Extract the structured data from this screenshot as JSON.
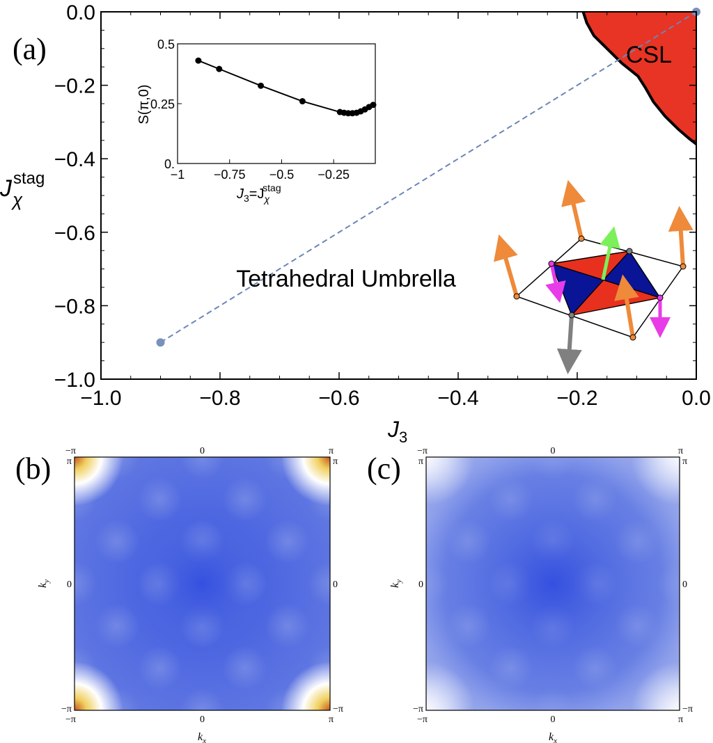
{
  "chart_data": [
    {
      "type": "scatter",
      "panel_label": "(a)",
      "title": "",
      "xlabel_main": "J",
      "xlabel_sub": "3",
      "ylabel_main": "J",
      "ylabel_sub": "χ",
      "ylabel_sup": "stag",
      "xlim": [
        -1.0,
        0.0
      ],
      "ylim": [
        -1.0,
        0.0
      ],
      "xticks": [
        -1.0,
        -0.8,
        -0.6,
        -0.4,
        -0.2,
        0.0
      ],
      "xtick_labels": [
        "−1.0",
        "−0.8",
        "−0.6",
        "−0.4",
        "−0.2",
        "0.0"
      ],
      "yticks": [
        0.0,
        -0.2,
        -0.4,
        -0.6,
        -0.8,
        -1.0
      ],
      "ytick_labels": [
        "0.0",
        "−0.2",
        "−0.4",
        "−0.6",
        "−0.8",
        "−1.0"
      ],
      "regions": [
        {
          "name": "CSL",
          "label": "CSL",
          "color": "#e83424",
          "boundary": [
            [
              -0.19,
              0.0
            ],
            [
              -0.184,
              -0.03
            ],
            [
              -0.172,
              -0.065
            ],
            [
              -0.15,
              -0.1
            ],
            [
              -0.125,
              -0.14
            ],
            [
              -0.098,
              -0.175
            ],
            [
              -0.085,
              -0.208
            ],
            [
              -0.072,
              -0.245
            ],
            [
              -0.052,
              -0.285
            ],
            [
              -0.03,
              -0.32
            ],
            [
              -0.012,
              -0.345
            ],
            [
              0.0,
              -0.36
            ]
          ]
        },
        {
          "name": "tetrahedral-umbrella",
          "label": "Tetrahedral Umbrella",
          "color": "#ffffff"
        }
      ],
      "series": [
        {
          "name": "dashed-line",
          "style": "dashed",
          "color": "#6a86b8",
          "points": [
            [
              -0.9,
              -0.9
            ],
            [
              0.0,
              0.0
            ]
          ]
        },
        {
          "name": "endpoints",
          "style": "markers",
          "color": "#7a90bd",
          "points": [
            [
              -0.9,
              -0.9
            ],
            [
              0.0,
              0.0
            ]
          ]
        }
      ]
    },
    {
      "type": "line",
      "name": "inset",
      "title": "",
      "xlabel": "J₃=J_χ^stag",
      "xlabel_pre": "J",
      "xlabel_sub1": "3",
      "xlabel_eq": "=J",
      "xlabel_sub2": "χ",
      "xlabel_sup2": "stag",
      "ylabel": "S(π,0)",
      "xlim": [
        -1.0,
        -0.05
      ],
      "ylim": [
        0.0,
        0.5
      ],
      "xticks": [
        -1.0,
        -0.75,
        -0.5,
        -0.25
      ],
      "xtick_labels": [
        "−1",
        "−0.75",
        "−0.5",
        "−0.25"
      ],
      "yticks": [
        0.0,
        0.25,
        0.5
      ],
      "ytick_labels": [
        "0.",
        "0.25",
        "0.5"
      ],
      "series": [
        {
          "name": "S(pi,0)",
          "color": "#000000",
          "x": [
            -0.9,
            -0.8,
            -0.6,
            -0.4,
            -0.22,
            -0.2,
            -0.18,
            -0.16,
            -0.14,
            -0.12,
            -0.1,
            -0.08,
            -0.06
          ],
          "y": [
            0.43,
            0.395,
            0.325,
            0.26,
            0.215,
            0.212,
            0.21,
            0.21,
            0.212,
            0.218,
            0.226,
            0.236,
            0.245
          ]
        }
      ]
    },
    {
      "type": "heatmap",
      "panel_label": "(b)",
      "xlabel": "k_x",
      "xlabel_main": "k",
      "xlabel_sub": "x",
      "ylabel": "k_y",
      "ylabel_main": "k",
      "ylabel_sub": "y",
      "xlim": [
        "−π",
        "π"
      ],
      "ylim": [
        "−π",
        "π"
      ],
      "xtick_labels": [
        "−π",
        "0",
        "π"
      ],
      "ytick_labels": [
        "−π",
        "0",
        "π"
      ],
      "colormap": [
        "#3e5be0",
        "#ffffff",
        "#f0d060",
        "#c8561c"
      ],
      "peaks": [
        {
          "kx": "−π",
          "ky": "π",
          "intensity": 1.0
        },
        {
          "kx": "π",
          "ky": "π",
          "intensity": 1.0
        },
        {
          "kx": "−π",
          "ky": "−π",
          "intensity": 1.0
        },
        {
          "kx": "π",
          "ky": "−π",
          "intensity": 1.0
        }
      ]
    },
    {
      "type": "heatmap",
      "panel_label": "(c)",
      "xlabel": "k_x",
      "xlabel_main": "k",
      "xlabel_sub": "x",
      "ylabel": "k_y",
      "ylabel_main": "k",
      "ylabel_sub": "y",
      "xlim": [
        "−π",
        "π"
      ],
      "ylim": [
        "−π",
        "π"
      ],
      "xtick_labels": [
        "−π",
        "0",
        "π"
      ],
      "ytick_labels": [
        "−π",
        "0",
        "π"
      ],
      "colormap": [
        "#3e5be0",
        "#ffffff"
      ],
      "peaks": []
    }
  ],
  "colors": {
    "csl_red": "#e83424",
    "blue_tri": "#0a1496",
    "red_tri": "#e8301e",
    "orange_arrow": "#ee8a3a",
    "magenta_arrow": "#e83ce8",
    "green_arrow": "#7cf05a",
    "gray_arrow": "#808080",
    "map_blue": "#3e5be0"
  }
}
